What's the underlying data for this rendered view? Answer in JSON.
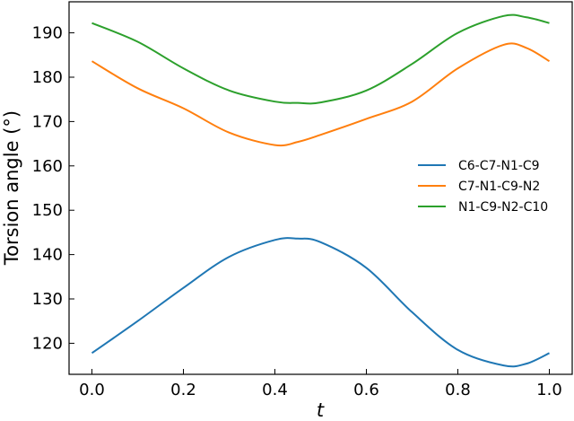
{
  "chart_data": {
    "type": "line",
    "xlabel": "t",
    "ylabel": "Torsion angle (°)",
    "xlim": [
      -0.05,
      1.05
    ],
    "ylim": [
      113,
      197
    ],
    "xticks": [
      0.0,
      0.2,
      0.4,
      0.6,
      0.8,
      1.0
    ],
    "xtick_labels": [
      "0.0",
      "0.2",
      "0.4",
      "0.6",
      "0.8",
      "1.0"
    ],
    "yticks": [
      120,
      130,
      140,
      150,
      160,
      170,
      180,
      190
    ],
    "ytick_labels": [
      "120",
      "130",
      "140",
      "150",
      "160",
      "170",
      "180",
      "190"
    ],
    "grid": false,
    "legend_position": "right",
    "x": [
      0.0,
      0.1,
      0.2,
      0.3,
      0.4,
      0.45,
      0.5,
      0.6,
      0.7,
      0.8,
      0.9,
      0.95,
      1.0
    ],
    "series": [
      {
        "name": "C6-C7-N1-C9",
        "color": "#1f77b4",
        "values": [
          117.8,
          125.0,
          132.5,
          139.5,
          143.3,
          143.6,
          142.8,
          137.0,
          127.0,
          118.5,
          115.0,
          115.4,
          117.8
        ]
      },
      {
        "name": "C7-N1-C9-N2",
        "color": "#ff7f0e",
        "values": [
          183.6,
          177.5,
          173.0,
          167.5,
          164.7,
          165.4,
          167.0,
          170.6,
          174.5,
          182.0,
          187.3,
          186.6,
          183.6
        ]
      },
      {
        "name": "N1-C9-N2-C10",
        "color": "#2ca02c",
        "values": [
          192.2,
          188.0,
          182.0,
          177.0,
          174.5,
          174.2,
          174.3,
          177.0,
          183.0,
          190.0,
          193.8,
          193.5,
          192.2
        ]
      }
    ]
  }
}
